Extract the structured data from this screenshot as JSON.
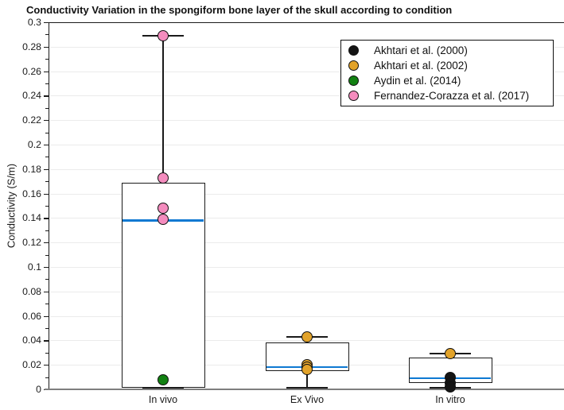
{
  "chart_data": {
    "type": "box",
    "title": "Conductivity Variation in the spongiform bone layer of the skull according to condition",
    "ylabel": "Conductivity (S/m)",
    "xlabel": "",
    "ylim": [
      0,
      0.3
    ],
    "grid": "horizontal-light",
    "legend_position": "top-right",
    "categories": [
      "In vivo",
      "Ex Vivo",
      "In vitro"
    ],
    "y_ticks": [
      {
        "v": 0,
        "label": "0"
      },
      {
        "v": 0.02,
        "label": "0.02"
      },
      {
        "v": 0.04,
        "label": "0.04"
      },
      {
        "v": 0.06,
        "label": "0.06"
      },
      {
        "v": 0.08,
        "label": "0.08"
      },
      {
        "v": 0.1,
        "label": "0.1"
      },
      {
        "v": 0.12,
        "label": "0.12"
      },
      {
        "v": 0.14,
        "label": "0.14"
      },
      {
        "v": 0.16,
        "label": "0.16"
      },
      {
        "v": 0.18,
        "label": "0.18"
      },
      {
        "v": 0.2,
        "label": "0.2"
      },
      {
        "v": 0.22,
        "label": "0.22"
      },
      {
        "v": 0.24,
        "label": "0.24"
      },
      {
        "v": 0.26,
        "label": "0.26"
      },
      {
        "v": 0.28,
        "label": "0.28"
      },
      {
        "v": 0.3,
        "label": "0.3"
      }
    ],
    "boxes": [
      {
        "category": "In vivo",
        "whisker_low": 0.001,
        "q1": 0.001,
        "median": 0.138,
        "q3": 0.169,
        "whisker_high": 0.289
      },
      {
        "category": "Ex Vivo",
        "whisker_low": 0.001,
        "q1": 0.015,
        "median": 0.018,
        "q3": 0.038,
        "whisker_high": 0.043
      },
      {
        "category": "In vitro",
        "whisker_low": 0.001,
        "q1": 0.005,
        "median": 0.009,
        "q3": 0.026,
        "whisker_high": 0.029
      }
    ],
    "points": [
      {
        "category": "In vivo",
        "series": "Fernandez-Corazza et al. (2017)",
        "values": [
          0.289,
          0.173,
          0.148,
          0.139
        ]
      },
      {
        "category": "In vivo",
        "series": "Aydin et al. (2014)",
        "values": [
          0.008
        ]
      },
      {
        "category": "Ex Vivo",
        "series": "Akhtari et al. (2002)",
        "values": [
          0.043,
          0.02,
          0.018,
          0.016
        ]
      },
      {
        "category": "In vitro",
        "series": "Akhtari et al. (2002)",
        "values": [
          0.029
        ]
      },
      {
        "category": "In vitro",
        "series": "Akhtari et al. (2000)",
        "values": [
          0.01,
          0.005,
          0.002
        ]
      }
    ],
    "legend": [
      {
        "label": "Akhtari et al. (2000)",
        "color": "#141414"
      },
      {
        "label": "Akhtari et al. (2002)",
        "color": "#E2A32A"
      },
      {
        "label": "Aydin et al. (2014)",
        "color": "#128112"
      },
      {
        "label": "Fernandez-Corazza et al. (2017)",
        "color": "#F48CBE"
      }
    ],
    "colors": {
      "median_line": "#0E79D2",
      "gridline": "#EBEBEB",
      "frame": "#1A1A1A",
      "x_axis_line": "#7E7E7E",
      "box_fill": "#FFFFFF"
    }
  }
}
